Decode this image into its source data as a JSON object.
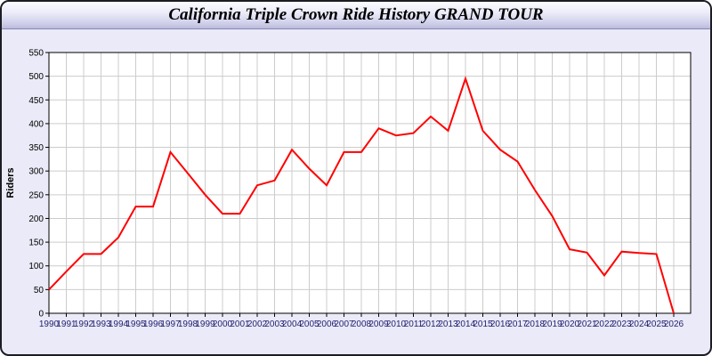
{
  "window": {
    "title": "California Triple Crown Ride History GRAND TOUR"
  },
  "chart_data": {
    "type": "line",
    "title": "California Triple Crown Ride History GRAND TOUR",
    "xlabel": "",
    "ylabel": "Riders",
    "categories": [
      "1990",
      "1991",
      "1992",
      "1993",
      "1994",
      "1995",
      "1996",
      "1997",
      "1998",
      "1999",
      "2000",
      "2001",
      "2002",
      "2003",
      "2004",
      "2005",
      "2006",
      "2007",
      "2008",
      "2009",
      "2010",
      "2011",
      "2012",
      "2013",
      "2014",
      "2015",
      "2016",
      "2017",
      "2018",
      "2019",
      "2020",
      "2021",
      "2022",
      "2023",
      "2024",
      "2025",
      "2026"
    ],
    "series": [
      {
        "name": "Riders",
        "values": [
          50,
          88,
          125,
          125,
          160,
          225,
          225,
          340,
          295,
          250,
          210,
          210,
          270,
          280,
          345,
          305,
          270,
          340,
          340,
          390,
          375,
          380,
          415,
          385,
          495,
          385,
          345,
          320,
          260,
          205,
          135,
          128,
          80,
          130,
          127,
          125,
          0
        ]
      }
    ],
    "ylim": [
      0,
      550
    ],
    "y_ticks": [
      0,
      50,
      100,
      150,
      200,
      250,
      300,
      350,
      400,
      450,
      500,
      550
    ],
    "grid": true,
    "legend_position": "none"
  },
  "colors": {
    "line": "#ff0000",
    "plot_background": "#ffffff",
    "window_background": "#eaeaf8",
    "grid": "#cccccc",
    "axis": "#000000",
    "x_tick_label": "#1f1f6e",
    "y_tick_label": "#000000",
    "ylabel_text": "#000000"
  }
}
